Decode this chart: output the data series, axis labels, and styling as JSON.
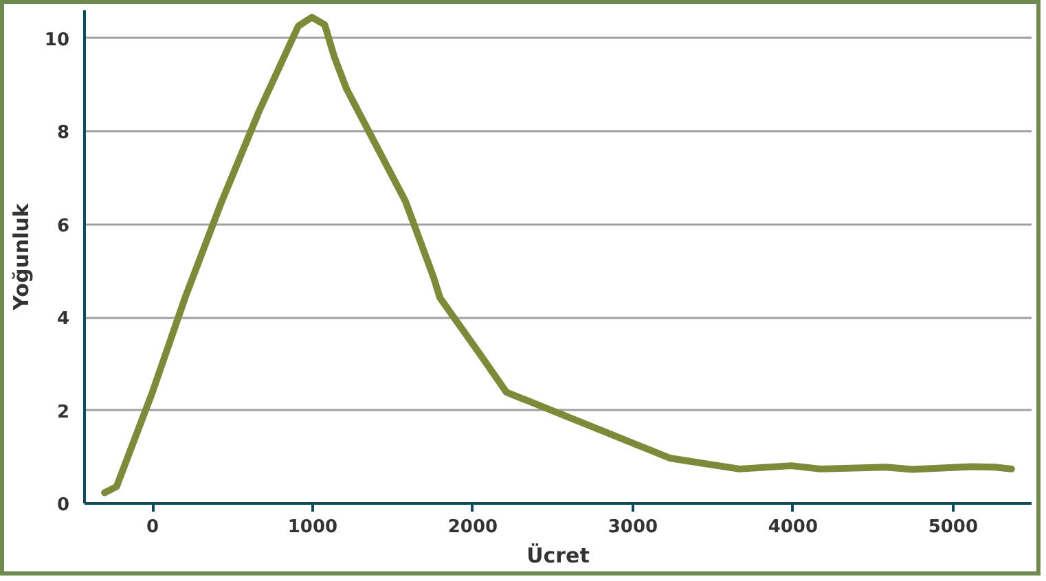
{
  "chart_data": {
    "type": "line",
    "xlabel": "Ücret",
    "ylabel": "Yoğunluk",
    "x": [
      -300,
      -225,
      0,
      205,
      425,
      665,
      910,
      995,
      1075,
      1135,
      1210,
      1580,
      1755,
      1795,
      2040,
      2210,
      3235,
      3665,
      3990,
      4170,
      4580,
      4745,
      5115,
      5260,
      5365
    ],
    "series": [
      {
        "color": "#7c8b3a",
        "values": [
          0.23,
          0.36,
          2.4,
          4.44,
          6.43,
          8.43,
          10.26,
          10.45,
          10.29,
          9.6,
          8.92,
          6.49,
          4.86,
          4.42,
          3.23,
          2.39,
          0.97,
          0.74,
          0.81,
          0.74,
          0.78,
          0.73,
          0.79,
          0.78,
          0.74
        ]
      }
    ],
    "xlim": [
      -425,
      5490
    ],
    "ylim": [
      0,
      10.6
    ],
    "xticks": [
      0,
      1000,
      2000,
      3000,
      4000,
      5000
    ],
    "yticks": [
      0,
      2,
      4,
      6,
      8,
      10
    ],
    "grid": "y",
    "marker": "none",
    "line_style": "solid"
  }
}
